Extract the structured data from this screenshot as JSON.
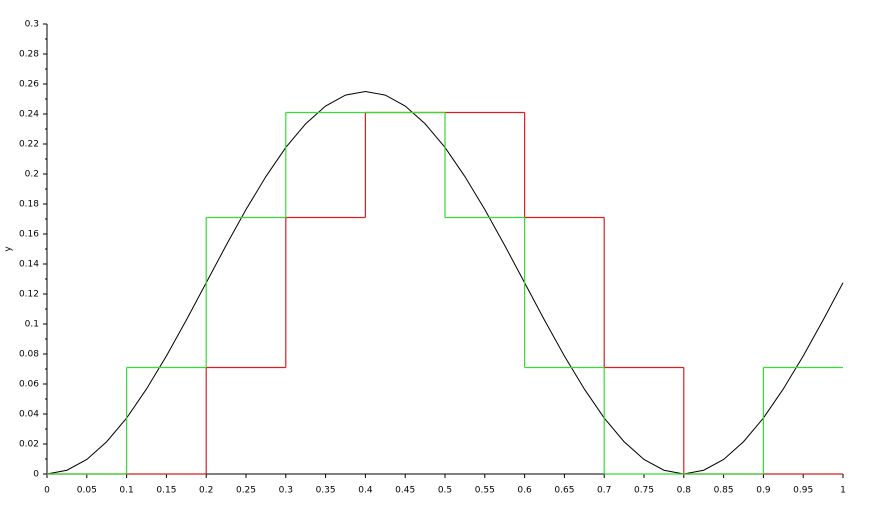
{
  "chart_data": {
    "type": "line",
    "ylabel": "y",
    "xlim": [
      0,
      1
    ],
    "ylim": [
      0,
      0.3
    ],
    "xticks": [
      0,
      0.05,
      0.1,
      0.15,
      0.2,
      0.25,
      0.3,
      0.35,
      0.4,
      0.45,
      0.5,
      0.55,
      0.6,
      0.65,
      0.7,
      0.75,
      0.8,
      0.85,
      0.9,
      0.95,
      1
    ],
    "yticks": [
      0,
      0.02,
      0.04,
      0.06,
      0.08,
      0.1,
      0.12,
      0.14,
      0.16,
      0.18,
      0.2,
      0.22,
      0.24,
      0.26,
      0.28,
      0.3
    ],
    "series": [
      {
        "color": "#000000",
        "x": [
          0,
          0.025,
          0.05,
          0.075,
          0.1,
          0.125,
          0.15,
          0.175,
          0.2,
          0.225,
          0.25,
          0.275,
          0.3,
          0.325,
          0.35,
          0.375,
          0.4,
          0.425,
          0.45,
          0.475,
          0.5,
          0.525,
          0.55,
          0.575,
          0.6,
          0.625,
          0.65,
          0.675,
          0.7,
          0.725,
          0.75,
          0.775,
          0.8,
          0.825,
          0.85,
          0.875,
          0.9,
          0.925,
          0.95,
          0.975,
          1
        ],
        "values": [
          0,
          0.0025,
          0.0097,
          0.0215,
          0.0373,
          0.0567,
          0.0787,
          0.1026,
          0.1275,
          0.1524,
          0.1763,
          0.1983,
          0.2177,
          0.2335,
          0.2453,
          0.2526,
          0.255,
          0.2526,
          0.2453,
          0.2335,
          0.2177,
          0.1983,
          0.1763,
          0.1524,
          0.1275,
          0.1026,
          0.0787,
          0.0567,
          0.0373,
          0.0215,
          0.0097,
          0.0025,
          0,
          0.0025,
          0.0097,
          0.0215,
          0.0373,
          0.0567,
          0.0787,
          0.1026,
          0.1275
        ]
      },
      {
        "color": "#d42020",
        "step": "post",
        "x": [
          0,
          0.1,
          0.2,
          0.3,
          0.4,
          0.5,
          0.6,
          0.7,
          0.8,
          0.9
        ],
        "values": [
          0,
          0,
          0.071,
          0.171,
          0.241,
          0.241,
          0.171,
          0.071,
          0,
          0
        ]
      },
      {
        "color": "#33dd33",
        "step": "post",
        "x": [
          0,
          0.1,
          0.2,
          0.3,
          0.4,
          0.5,
          0.6,
          0.7,
          0.8,
          0.9
        ],
        "values": [
          0,
          0.071,
          0.171,
          0.241,
          0.241,
          0.171,
          0.071,
          0,
          0,
          0.071
        ]
      }
    ]
  }
}
